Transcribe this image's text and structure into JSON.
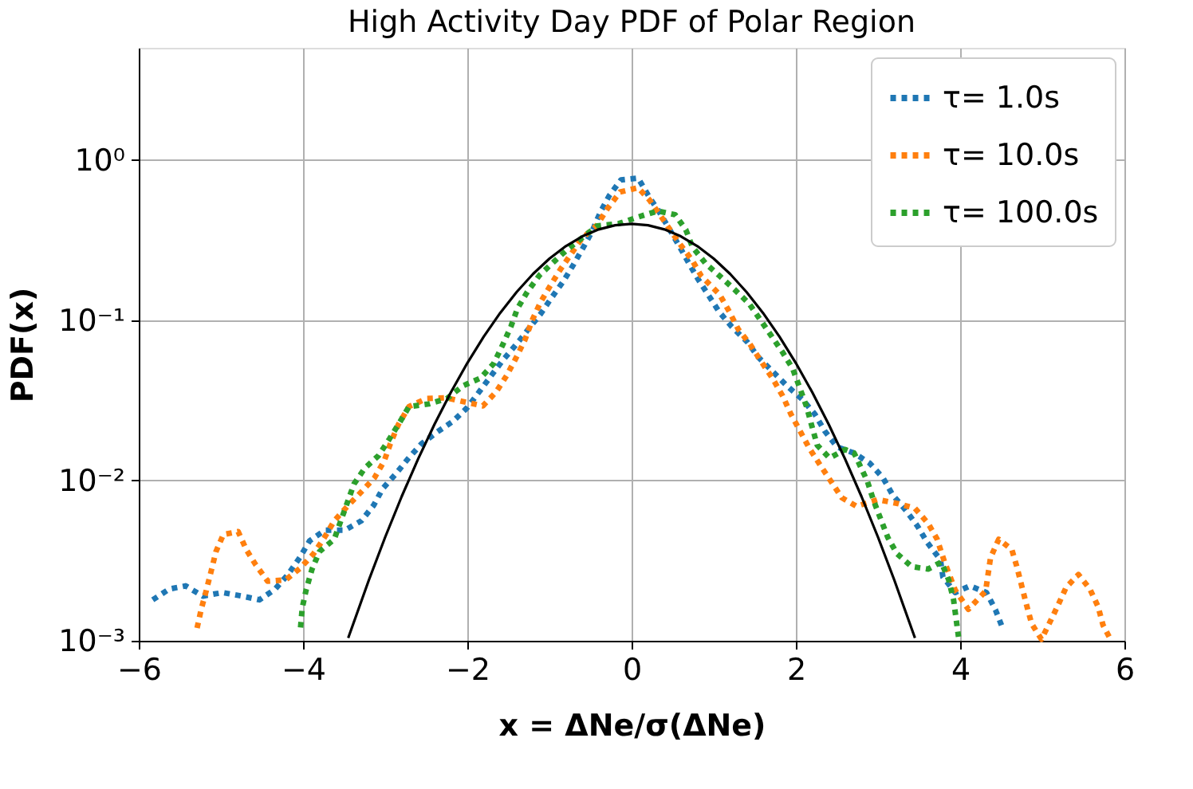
{
  "chart_data": {
    "type": "line",
    "title": "High Activity Day PDF of Polar Region",
    "xlabel": "x = ΔNe/σ(ΔNe)",
    "ylabel": "PDF(x)",
    "log": "y",
    "grid": true,
    "legend": "top right",
    "marker": "none",
    "line_style": "dotted",
    "xlim": [
      -6,
      6
    ],
    "ylim": [
      0.001,
      5
    ],
    "xticks": [
      {
        "value": -6,
        "label": "−6"
      },
      {
        "value": -4,
        "label": "−4"
      },
      {
        "value": -2,
        "label": "−2"
      },
      0,
      2,
      4,
      6
    ],
    "yticks": [
      {
        "value": 0.001,
        "label": "10⁻³"
      },
      {
        "value": 0.01,
        "label": "10⁻²"
      },
      {
        "value": 0.1,
        "label": "10⁻¹"
      },
      {
        "value": 1,
        "label": "10⁰"
      }
    ],
    "series": [
      {
        "name": "τ= 1.0s",
        "color": "#1f77b4",
        "x": [
          -5.83,
          -5.63,
          -5.43,
          -5.22,
          -4.98,
          -4.74,
          -4.53,
          -4.34,
          -4.18,
          -4.04,
          -3.92,
          -3.73,
          -3.49,
          -3.29,
          -3.14,
          -3.03,
          -2.87,
          -2.72,
          -2.56,
          -2.37,
          -2.17,
          -2.0,
          -1.85,
          -1.71,
          -1.57,
          -1.4,
          -1.26,
          -1.11,
          -0.97,
          -0.83,
          -0.71,
          -0.59,
          -0.48,
          -0.38,
          -0.27,
          -0.13,
          0.08,
          0.22,
          0.33,
          0.46,
          0.58,
          0.69,
          0.81,
          0.94,
          1.07,
          1.22,
          1.41,
          1.54,
          1.89,
          2.08,
          2.23,
          2.35,
          2.5,
          2.71,
          2.9,
          3.06,
          3.18,
          3.34,
          3.48,
          3.6,
          3.76,
          3.79,
          3.94,
          4.12,
          4.32,
          4.43,
          4.52
        ],
        "values": [
          0.0018,
          0.0021,
          0.0022,
          0.0019,
          0.002,
          0.0019,
          0.0018,
          0.0021,
          0.0026,
          0.0033,
          0.0042,
          0.0049,
          0.0049,
          0.0056,
          0.007,
          0.0089,
          0.011,
          0.0137,
          0.0169,
          0.02,
          0.0235,
          0.0285,
          0.036,
          0.045,
          0.056,
          0.071,
          0.0875,
          0.109,
          0.139,
          0.175,
          0.221,
          0.283,
          0.359,
          0.472,
          0.6,
          0.75,
          0.77,
          0.58,
          0.48,
          0.37,
          0.29,
          0.23,
          0.18,
          0.142,
          0.112,
          0.091,
          0.073,
          0.059,
          0.039,
          0.032,
          0.026,
          0.0204,
          0.0162,
          0.0148,
          0.0128,
          0.0104,
          0.0081,
          0.0065,
          0.0052,
          0.0041,
          0.0032,
          0.0025,
          0.002,
          0.0022,
          0.002,
          0.00156,
          0.00119
        ]
      },
      {
        "name": "τ= 10.0s",
        "color": "#ff7f0e",
        "x": [
          -5.29,
          -5.24,
          -5.18,
          -5.12,
          -5.06,
          -4.97,
          -4.79,
          -4.69,
          -4.58,
          -4.43,
          -4.21,
          -4.03,
          -3.87,
          -3.74,
          -3.62,
          -3.46,
          -3.29,
          -3.13,
          -3.01,
          -2.94,
          -2.84,
          -2.71,
          -2.5,
          -2.26,
          -2.03,
          -1.81,
          -1.65,
          -1.52,
          -1.41,
          -1.3,
          -1.21,
          -1.11,
          -0.99,
          -0.87,
          -0.74,
          -0.61,
          -0.42,
          -0.29,
          -0.14,
          0.08,
          0.22,
          0.35,
          0.48,
          0.59,
          0.74,
          0.85,
          1.07,
          1.19,
          1.3,
          1.44,
          1.57,
          1.72,
          1.84,
          1.94,
          2.05,
          2.16,
          2.29,
          2.42,
          2.56,
          2.74,
          3.0,
          3.23,
          3.45,
          3.61,
          3.72,
          3.81,
          3.94,
          4.1,
          4.31,
          4.37,
          4.47,
          4.63,
          4.69,
          4.81,
          4.87,
          4.99,
          5.1,
          5.19,
          5.29,
          5.44,
          5.58,
          5.68,
          5.74,
          5.84
        ],
        "values": [
          0.0012,
          0.00157,
          0.00204,
          0.0027,
          0.0036,
          0.0046,
          0.0048,
          0.0037,
          0.003,
          0.00235,
          0.0024,
          0.00285,
          0.0035,
          0.0044,
          0.0056,
          0.0069,
          0.0085,
          0.0104,
          0.0133,
          0.0168,
          0.0223,
          0.0289,
          0.0324,
          0.0328,
          0.0309,
          0.0292,
          0.0356,
          0.0452,
          0.0577,
          0.075,
          0.1,
          0.129,
          0.164,
          0.206,
          0.257,
          0.321,
          0.392,
          0.5,
          0.63,
          0.67,
          0.56,
          0.45,
          0.359,
          0.298,
          0.235,
          0.188,
          0.145,
          0.113,
          0.0875,
          0.071,
          0.056,
          0.043,
          0.0336,
          0.0259,
          0.0204,
          0.016,
          0.0126,
          0.01,
          0.0078,
          0.0069,
          0.0076,
          0.0072,
          0.0067,
          0.0054,
          0.0043,
          0.0031,
          0.00207,
          0.00157,
          0.00204,
          0.0033,
          0.0043,
          0.0037,
          0.0029,
          0.00166,
          0.00128,
          0.00102,
          0.00133,
          0.00166,
          0.00215,
          0.00259,
          0.0021,
          0.00163,
          0.00125,
          0.001
        ]
      },
      {
        "name": "τ= 100.0s",
        "color": "#2ca02c",
        "x": [
          -4.03,
          -4.01,
          -3.96,
          -3.89,
          -3.8,
          -3.62,
          -3.54,
          -3.46,
          -3.38,
          -3.25,
          -3.08,
          -2.95,
          -2.82,
          -2.71,
          -2.47,
          -2.25,
          -2.05,
          -1.84,
          -1.68,
          -1.57,
          -1.47,
          -1.39,
          -1.27,
          -1.12,
          -0.94,
          -0.78,
          -0.58,
          -0.42,
          -0.16,
          0.08,
          0.32,
          0.53,
          0.66,
          0.74,
          0.9,
          1.06,
          1.25,
          1.43,
          1.57,
          1.7,
          1.83,
          1.96,
          2.05,
          2.13,
          2.19,
          2.26,
          2.41,
          2.6,
          2.71,
          2.87,
          2.95,
          3.03,
          3.12,
          3.23,
          3.41,
          3.61,
          3.77,
          3.86,
          3.92,
          3.95,
          3.98
        ],
        "values": [
          0.00121,
          0.0016,
          0.0021,
          0.0028,
          0.0036,
          0.0043,
          0.0056,
          0.0073,
          0.0095,
          0.0119,
          0.0143,
          0.0181,
          0.0232,
          0.0289,
          0.03,
          0.0324,
          0.039,
          0.0435,
          0.0535,
          0.07,
          0.091,
          0.118,
          0.15,
          0.191,
          0.233,
          0.277,
          0.333,
          0.387,
          0.4,
          0.44,
          0.48,
          0.455,
          0.367,
          0.287,
          0.226,
          0.191,
          0.156,
          0.127,
          0.1,
          0.08,
          0.064,
          0.05,
          0.0375,
          0.0289,
          0.0223,
          0.0166,
          0.0138,
          0.0156,
          0.0148,
          0.0099,
          0.0074,
          0.0058,
          0.0044,
          0.0035,
          0.0029,
          0.0028,
          0.0031,
          0.0024,
          0.0018,
          0.00138,
          0.00106
        ]
      },
      {
        "color": "#000000",
        "line_style": "solid",
        "x": [
          -3.45,
          -3.2,
          -3.0,
          -2.8,
          -2.6,
          -2.4,
          -2.2,
          -2.0,
          -1.8,
          -1.6,
          -1.4,
          -1.2,
          -1.0,
          -0.8,
          -0.6,
          -0.4,
          -0.2,
          0,
          0.2,
          0.4,
          0.6,
          0.8,
          1.0,
          1.2,
          1.4,
          1.6,
          1.8,
          2.0,
          2.2,
          2.4,
          2.6,
          2.8,
          3.0,
          3.2,
          3.45
        ],
        "values": [
          0.00104,
          0.00238,
          0.00443,
          0.00792,
          0.01358,
          0.02239,
          0.03547,
          0.05399,
          0.07895,
          0.1109,
          0.1497,
          0.1942,
          0.242,
          0.2897,
          0.3332,
          0.3683,
          0.391,
          0.3989,
          0.391,
          0.3683,
          0.3332,
          0.2897,
          0.242,
          0.1942,
          0.1497,
          0.1109,
          0.07895,
          0.05399,
          0.03547,
          0.02239,
          0.01358,
          0.00792,
          0.00443,
          0.00238,
          0.00104
        ]
      }
    ]
  }
}
